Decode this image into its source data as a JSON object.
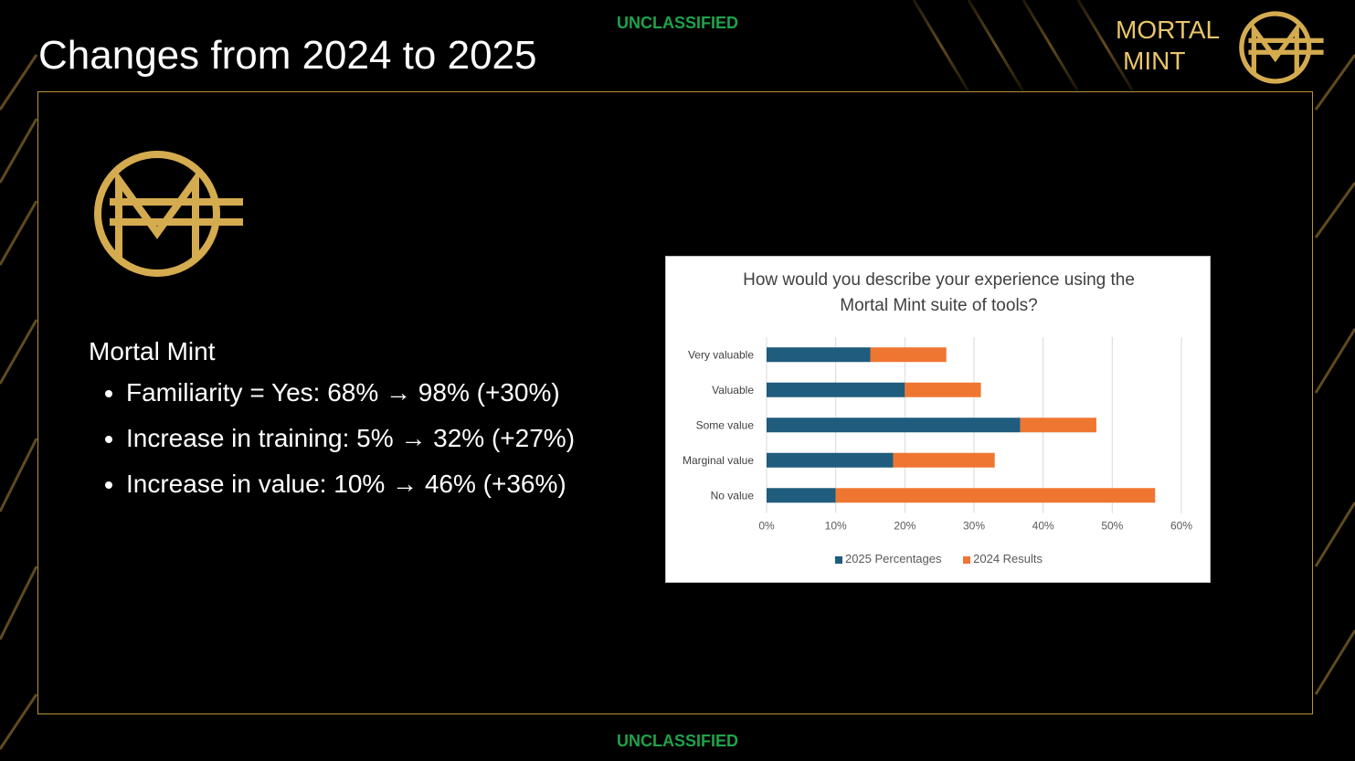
{
  "classification": {
    "top": "UNCLASSIFIED",
    "bottom": "UNCLASSIFIED"
  },
  "title": "Changes from 2024 to 2025",
  "brand": {
    "line1": "MORTAL",
    "line2": "MINT"
  },
  "section": {
    "heading": "Mortal Mint",
    "bullets": [
      "Familiarity = Yes: 68% → 98% (+30%)",
      "Increase in training: 5% → 32% (+27%)",
      "Increase in value: 10% → 46% (+36%)"
    ]
  },
  "colors": {
    "gold": "#e9c56b",
    "series_2025": "#1f5c7d",
    "series_2024": "#ef7631",
    "classification": "#1fa24a"
  },
  "chart_data": {
    "type": "bar",
    "orientation": "horizontal",
    "stacked": true,
    "title_lines": [
      "How would you describe your experience using the",
      "Mortal Mint suite of tools?"
    ],
    "categories": [
      "Very valuable",
      "Valuable",
      "Some value",
      "Marginal value",
      "No value"
    ],
    "series": [
      {
        "name": "2025 Percentages",
        "color": "#1f5c7d",
        "values": [
          15,
          20,
          36.7,
          18.3,
          10
        ]
      },
      {
        "name": "2024 Results",
        "color": "#ef7631",
        "values": [
          11,
          11,
          11,
          14.7,
          46.2
        ]
      }
    ],
    "xlim": [
      0,
      60
    ],
    "xticks": [
      "0%",
      "10%",
      "20%",
      "30%",
      "40%",
      "50%",
      "60%"
    ],
    "grid": true,
    "legend": "bottom"
  }
}
